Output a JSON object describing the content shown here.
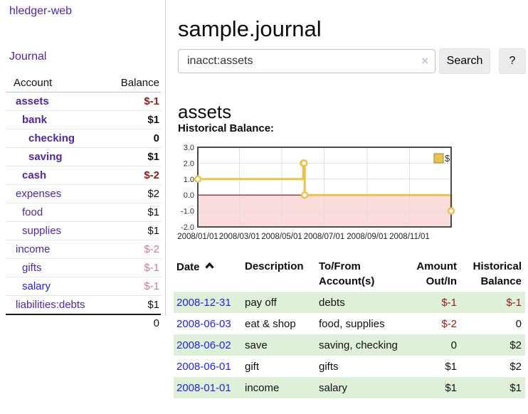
{
  "app": {
    "title": "hledger-web"
  },
  "sidebar": {
    "journal_label": "Journal",
    "accounts": {
      "headers": [
        "Account",
        "Balance"
      ],
      "rows": [
        {
          "name": "assets",
          "balance": "$-1",
          "depth": 1,
          "in_account": true,
          "name_color": "purple",
          "balance_color": "negative"
        },
        {
          "name": "bank",
          "balance": "$1",
          "depth": 2,
          "in_account": true,
          "name_color": "purple",
          "balance_color": "normal"
        },
        {
          "name": "checking",
          "balance": "0",
          "depth": 3,
          "in_account": true,
          "name_color": "purple",
          "balance_color": "normal"
        },
        {
          "name": "saving",
          "balance": "$1",
          "depth": 3,
          "in_account": true,
          "name_color": "purple",
          "balance_color": "normal"
        },
        {
          "name": "cash",
          "balance": "$-2",
          "depth": 2,
          "in_account": true,
          "name_color": "purple",
          "balance_color": "negative"
        },
        {
          "name": "expenses",
          "balance": "$2",
          "depth": 1,
          "in_account": false,
          "name_color": "purple",
          "balance_color": "normal"
        },
        {
          "name": "food",
          "balance": "$1",
          "depth": 2,
          "in_account": false,
          "name_color": "purple",
          "balance_color": "normal"
        },
        {
          "name": "supplies",
          "balance": "$1",
          "depth": 2,
          "in_account": false,
          "name_color": "purple",
          "balance_color": "normal"
        },
        {
          "name": "income",
          "balance": "$-2",
          "depth": 1,
          "in_account": false,
          "name_color": "purple",
          "balance_color": "negative-muted"
        },
        {
          "name": "gifts",
          "balance": "$-1",
          "depth": 2,
          "in_account": false,
          "name_color": "purple",
          "balance_color": "negative-muted"
        },
        {
          "name": "salary",
          "balance": "$-1",
          "depth": 2,
          "in_account": false,
          "name_color": "blue",
          "balance_color": "negative-muted"
        },
        {
          "name": "liabilities:debts",
          "balance": "$1",
          "depth": 1,
          "in_account": false,
          "name_color": "purple",
          "balance_color": "normal"
        }
      ],
      "total": "0"
    }
  },
  "main": {
    "title": "sample.journal",
    "search": {
      "value": "inacct:assets",
      "clear_icon": "×",
      "button_label": "Search",
      "help_label": "?"
    },
    "account_heading": "assets",
    "chart_label": "Historical Balance:"
  },
  "register": {
    "headers": {
      "date": "Date",
      "description": "Description",
      "accounts": "To/From Account(s)",
      "amount": "Amount Out/In",
      "balance": "Historical Balance"
    },
    "rows": [
      {
        "date": "2008-12-31",
        "description": "pay off",
        "accounts": "debts",
        "amount": "$-1",
        "amount_negative": true,
        "balance": "$-1",
        "balance_negative": true
      },
      {
        "date": "2008-06-03",
        "description": "eat & shop",
        "accounts": "food, supplies",
        "amount": "$-2",
        "amount_negative": true,
        "balance": "0",
        "balance_negative": false
      },
      {
        "date": "2008-06-02",
        "description": "save",
        "accounts": "saving, checking",
        "amount": "0",
        "amount_negative": false,
        "balance": "$2",
        "balance_negative": false
      },
      {
        "date": "2008-06-01",
        "description": "gift",
        "accounts": "gifts",
        "amount": "$1",
        "amount_negative": false,
        "balance": "$2",
        "balance_negative": false
      },
      {
        "date": "2008-01-01",
        "description": "income",
        "accounts": "salary",
        "amount": "$1",
        "amount_negative": false,
        "balance": "$1",
        "balance_negative": false
      }
    ]
  },
  "chart_data": {
    "type": "line",
    "title": "Historical Balance",
    "step": true,
    "legend": [
      {
        "label": "$",
        "color": "#e8c24e"
      }
    ],
    "legend_position": "top-right",
    "grid": true,
    "ylim": [
      -2.0,
      3.0
    ],
    "y_ticks": [
      3.0,
      2.0,
      1.0,
      0.0,
      -1.0,
      -2.0
    ],
    "x_ticks": [
      "2008/01/01",
      "2008/03/01",
      "2008/05/01",
      "2008/07/01",
      "2008/09/01",
      "2008/11/01"
    ],
    "x_tick_days": [
      0,
      60,
      121,
      182,
      244,
      305
    ],
    "x_range_days": [
      0,
      365
    ],
    "series": [
      {
        "name": "$",
        "points": [
          {
            "date": "2008-01-01",
            "day": 0,
            "value": 1
          },
          {
            "date": "2008-06-01",
            "day": 152,
            "value": 2
          },
          {
            "date": "2008-06-02",
            "day": 153,
            "value": 2
          },
          {
            "date": "2008-06-03",
            "day": 154,
            "value": 0
          },
          {
            "date": "2008-12-31",
            "day": 365,
            "value": -1
          }
        ]
      }
    ],
    "line_color": "#e8c24e",
    "marker_fill": "#ffffff",
    "negative_region_color": "#fbdcdc",
    "zero_line_color": "#7a0c0c",
    "grid_color": "#e0e0e0",
    "border_color": "#4a4a4a"
  }
}
